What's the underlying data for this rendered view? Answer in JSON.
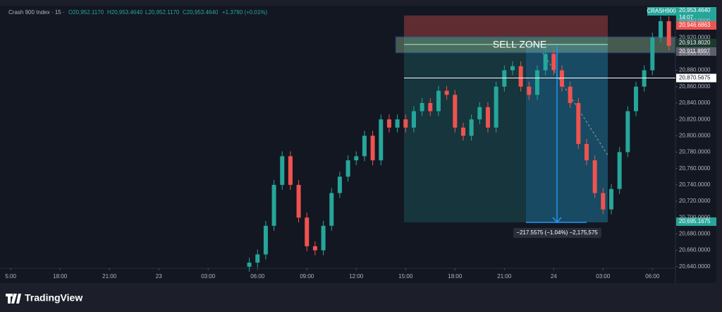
{
  "header": {
    "symbol": "Crash 900 Index · 15 ·",
    "open": "O20,952.1170",
    "high": "H20,953.4640",
    "low": "L20,952.1170",
    "close": "C20,953.4640",
    "change": "+1.3780 (+0.01%)"
  },
  "chart_data": {
    "type": "candlestick",
    "x": [
      14.5,
      15,
      15.5,
      16,
      16.5,
      17,
      17.5,
      18,
      18.5,
      19,
      19.5,
      20,
      20.5,
      21,
      21.5,
      22,
      22.5,
      23,
      23.5,
      24,
      24.5,
      25,
      25.5,
      26,
      26.5,
      27,
      27.5,
      28,
      28.5,
      29,
      29.5,
      30,
      30.5,
      31,
      31.5,
      32,
      32.5,
      33,
      33.5,
      34,
      34.5,
      35,
      35.5,
      36,
      36.5,
      37,
      37.5,
      38,
      38.5,
      39,
      39.5,
      40
    ],
    "open": [
      20640,
      20645,
      20655,
      20690,
      20740,
      20775,
      20740,
      20700,
      20665,
      20660,
      20690,
      20730,
      20750,
      20770,
      20775,
      20800,
      20770,
      20820,
      20810,
      20820,
      20810,
      20830,
      20840,
      20830,
      20855,
      20850,
      20810,
      20800,
      20820,
      20835,
      20810,
      20860,
      20880,
      20885,
      20860,
      20850,
      20880,
      20900,
      20880,
      20860,
      20840,
      20790,
      20770,
      20730,
      20710,
      20735,
      20780,
      20830,
      20860,
      20880,
      20920,
      20940
    ],
    "high": [
      20651,
      20661,
      20696,
      20746,
      20781,
      20781,
      20746,
      20706,
      20671,
      20696,
      20736,
      20756,
      20776,
      20781,
      20806,
      20806,
      20826,
      20826,
      20826,
      20826,
      20836,
      20846,
      20846,
      20861,
      20861,
      20856,
      20816,
      20826,
      20841,
      20841,
      20866,
      20886,
      20891,
      20891,
      20866,
      20886,
      20906,
      20906,
      20886,
      20866,
      20846,
      20796,
      20776,
      20736,
      20741,
      20786,
      20836,
      20866,
      20886,
      20926,
      20946,
      20946
    ],
    "low": [
      20634,
      20639,
      20649,
      20684,
      20734,
      20734,
      20694,
      20659,
      20654,
      20654,
      20684,
      20724,
      20744,
      20764,
      20769,
      20764,
      20764,
      20804,
      20804,
      20804,
      20804,
      20824,
      20824,
      20824,
      20844,
      20804,
      20794,
      20794,
      20814,
      20804,
      20804,
      20854,
      20874,
      20854,
      20844,
      20844,
      20874,
      20874,
      20854,
      20834,
      20784,
      20764,
      20724,
      20704,
      20704,
      20729,
      20774,
      20824,
      20854,
      20874,
      20914,
      20904
    ],
    "close": [
      20645,
      20655,
      20690,
      20740,
      20775,
      20740,
      20700,
      20665,
      20660,
      20690,
      20730,
      20750,
      20770,
      20775,
      20800,
      20770,
      20820,
      20810,
      20820,
      20810,
      20830,
      20840,
      20830,
      20855,
      20850,
      20810,
      20800,
      20820,
      20835,
      20810,
      20860,
      20880,
      20885,
      20860,
      20850,
      20880,
      20900,
      20880,
      20860,
      20840,
      20790,
      20770,
      20730,
      20710,
      20735,
      20780,
      20830,
      20860,
      20880,
      20920,
      20940,
      20910
    ],
    "up_color": "#26a69a",
    "down_color": "#ef5350",
    "xlim": [
      -0.65,
      40.4
    ],
    "xticks": [
      {
        "value": 0,
        "label": "5:00"
      },
      {
        "value": 3,
        "label": "18:00"
      },
      {
        "value": 6,
        "label": "21:00"
      },
      {
        "value": 9,
        "label": "23"
      },
      {
        "value": 12,
        "label": "03:00"
      },
      {
        "value": 15,
        "label": "06:00"
      },
      {
        "value": 18,
        "label": "09:00"
      },
      {
        "value": 21,
        "label": "12:00"
      },
      {
        "value": 24,
        "label": "15:00"
      },
      {
        "value": 27,
        "label": "18:00"
      },
      {
        "value": 30,
        "label": "21:00"
      },
      {
        "value": 33,
        "label": "24"
      },
      {
        "value": 36,
        "label": "03:00"
      },
      {
        "value": 39,
        "label": "06:00"
      }
    ],
    "ylim": [
      20620,
      20959
    ],
    "yticks": [
      {
        "value": 20640,
        "label": "20,640.0000"
      },
      {
        "value": 20660,
        "label": "20,660.0000"
      },
      {
        "value": 20680,
        "label": "20,680.0000"
      },
      {
        "value": 20700,
        "label": "20,700.0000"
      },
      {
        "value": 20720,
        "label": "20,720.0000"
      },
      {
        "value": 20740,
        "label": "20,740.0000"
      },
      {
        "value": 20760,
        "label": "20,760.0000"
      },
      {
        "value": 20780,
        "label": "20,780.0000"
      },
      {
        "value": 20800,
        "label": "20,800.0000"
      },
      {
        "value": 20820,
        "label": "20,820.0000"
      },
      {
        "value": 20840,
        "label": "20,840.0000"
      },
      {
        "value": 20860,
        "label": "20,860.0000"
      },
      {
        "value": 20880,
        "label": "20,880.0000"
      },
      {
        "value": 20900,
        "label": "20,900.0000"
      },
      {
        "value": 20920,
        "label": "20,920.0000"
      },
      {
        "value": 20940,
        "label": "20,940.0000"
      }
    ],
    "zone_label": "SELL ZONE",
    "level": {
      "value": 20870.5675,
      "label": "20,870.5675"
    },
    "measure": "−217.5575 (−1.04%) −2,175,575",
    "price_tags": {
      "symbol": "CRASH900",
      "last": "20,953.4640",
      "countdown": "14:07",
      "stop": "20,946.6863",
      "entry": "20,913.8020",
      "current": "20,911.8997",
      "target": "20,695.1675"
    }
  },
  "footer": {
    "brand": "TradingView"
  }
}
